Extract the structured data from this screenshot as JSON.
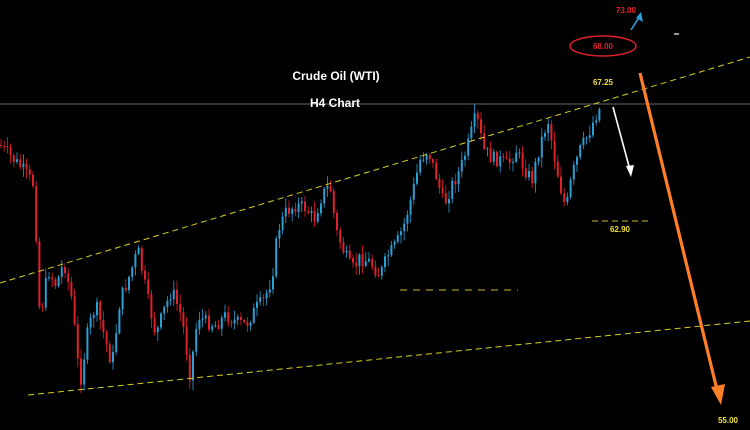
{
  "chart_data": {
    "type": "candlestick",
    "title": "Crude Oil (WTI)",
    "subtitle": "H4 Chart",
    "colors": {
      "background": "#000000",
      "bull_candle": "#2a9fd6",
      "bear_candle": "#e0202a",
      "trendline": "#d8d020",
      "support_dash": "#c8b830",
      "current_price_line": "#8a8a8a",
      "level_label": "#f0e040",
      "target_red": "#e0202a",
      "arrow_up": "#2a9fd6",
      "arrow_down_short": "#ffffff",
      "arrow_down_long": "#ff7f27"
    },
    "levels": [
      {
        "name": "upper-target",
        "value": 73.0,
        "label": "73.00",
        "color": "#e0202a"
      },
      {
        "name": "resistance-circle",
        "value": 68.0,
        "label": "68.00",
        "color": "#e0202a",
        "circled": true
      },
      {
        "name": "current",
        "value": 67.25,
        "label": "67.25",
        "color": "#f0e040"
      },
      {
        "name": "pullback-target",
        "value": 62.9,
        "label": "62.90",
        "color": "#f0e040"
      },
      {
        "name": "lower-target",
        "value": 55.0,
        "label": "55.00",
        "color": "#f0e040"
      }
    ],
    "arrows": [
      {
        "name": "bullish-breakout-arrow",
        "direction": "up",
        "target": 73.0,
        "color": "#2a9fd6"
      },
      {
        "name": "short-term-pullback-arrow",
        "direction": "down",
        "target": 62.9,
        "color": "#ffffff"
      },
      {
        "name": "bearish-breakdown-arrow",
        "direction": "down",
        "target": 55.0,
        "color": "#ff7f27"
      }
    ],
    "pattern": "rising wedge (dashed trendlines)"
  }
}
